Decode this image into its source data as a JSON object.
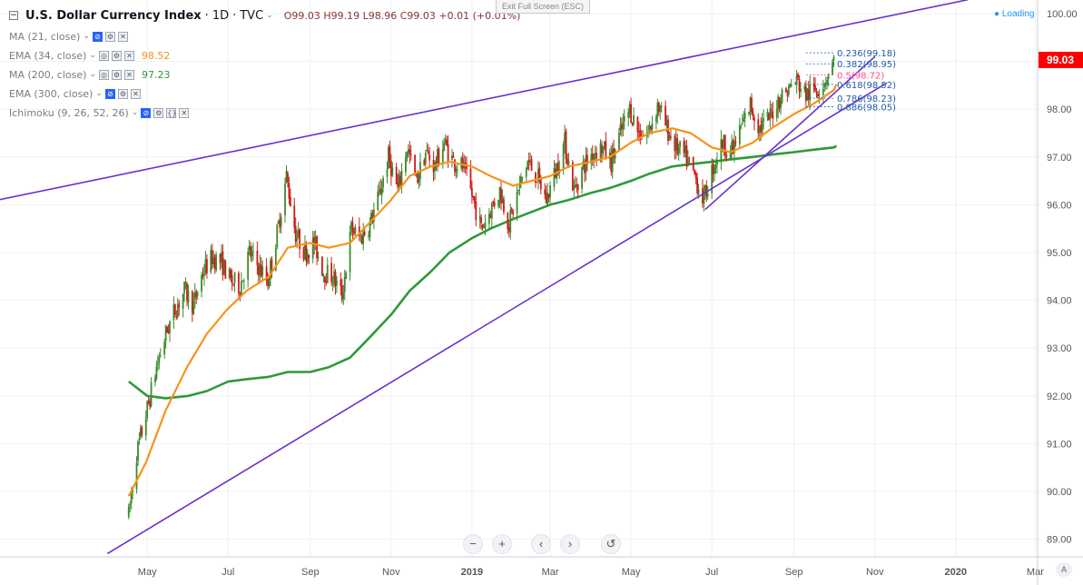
{
  "header": {
    "collapse_icon": "minus-box-icon",
    "symbol": "U.S. Dollar Currency Index",
    "interval": "1D",
    "source": "TVC",
    "open": "O99.03",
    "high": "H99.19",
    "low": "L98.96",
    "close": "C99.03",
    "change": "+0.01 (+0.01%)"
  },
  "indicators": [
    {
      "label": "MA (21, close)",
      "value": ""
    },
    {
      "label": "EMA (34, close)",
      "value": "98.52",
      "color": "#f7931a"
    },
    {
      "label": "MA (200, close)",
      "value": "97.23",
      "color": "#2e9a3a"
    },
    {
      "label": "EMA (300, close)",
      "value": ""
    },
    {
      "label": "Ichimoku (9, 26, 52, 26)",
      "value": ""
    }
  ],
  "exit_fullscreen": "Exit Full Screen (ESC)",
  "loading": "Loading",
  "navigation": {
    "zoom_out": "−",
    "zoom_in": "+",
    "scroll_left": "‹",
    "scroll_right": "›",
    "reset": "↺",
    "auto": "A"
  },
  "chart_data": {
    "type": "candlestick",
    "x_ticks": [
      "May",
      "Jul",
      "Sep",
      "Nov",
      "2019",
      "Mar",
      "May",
      "Jul",
      "Sep",
      "Nov",
      "2020",
      "Mar"
    ],
    "y_ticks": [
      "100.00",
      "99.00",
      "98.00",
      "97.00",
      "96.00",
      "95.00",
      "94.00",
      "93.00",
      "92.00",
      "91.00",
      "90.00",
      "89.00"
    ],
    "ylim": [
      88.8,
      100.2
    ],
    "last_price": "99.03",
    "last_price_color": "#ff0000",
    "up_color": "#3c8a2e",
    "down_color": "#d11b1b",
    "trendline_color": "#6a2fd0",
    "close_path": [
      [
        "2018-04-17",
        89.5
      ],
      [
        "2018-04-23",
        90.8
      ],
      [
        "2018-04-30",
        91.6
      ],
      [
        "2018-05-08",
        92.6
      ],
      [
        "2018-05-15",
        93.3
      ],
      [
        "2018-05-22",
        93.8
      ],
      [
        "2018-05-29",
        94.2
      ],
      [
        "2018-06-05",
        93.9
      ],
      [
        "2018-06-12",
        94.6
      ],
      [
        "2018-06-19",
        94.9
      ],
      [
        "2018-06-26",
        94.8
      ],
      [
        "2018-07-03",
        94.4
      ],
      [
        "2018-07-10",
        94.3
      ],
      [
        "2018-07-17",
        95.0
      ],
      [
        "2018-07-24",
        94.7
      ],
      [
        "2018-07-31",
        94.4
      ],
      [
        "2018-08-07",
        95.4
      ],
      [
        "2018-08-14",
        96.6
      ],
      [
        "2018-08-21",
        95.4
      ],
      [
        "2018-08-28",
        95.0
      ],
      [
        "2018-09-04",
        95.2
      ],
      [
        "2018-09-11",
        94.6
      ],
      [
        "2018-09-18",
        94.5
      ],
      [
        "2018-09-25",
        94.1
      ],
      [
        "2018-10-02",
        95.5
      ],
      [
        "2018-10-09",
        95.3
      ],
      [
        "2018-10-16",
        95.6
      ],
      [
        "2018-10-23",
        96.2
      ],
      [
        "2018-10-30",
        97.0
      ],
      [
        "2018-11-06",
        96.3
      ],
      [
        "2018-11-13",
        97.2
      ],
      [
        "2018-11-20",
        96.5
      ],
      [
        "2018-11-27",
        97.1
      ],
      [
        "2018-12-04",
        96.8
      ],
      [
        "2018-12-11",
        97.3
      ],
      [
        "2018-12-18",
        96.9
      ],
      [
        "2018-12-25",
        96.8
      ],
      [
        "2019-01-01",
        96.2
      ],
      [
        "2019-01-08",
        95.5
      ],
      [
        "2019-01-15",
        95.9
      ],
      [
        "2019-01-22",
        96.3
      ],
      [
        "2019-01-29",
        95.6
      ],
      [
        "2019-02-05",
        96.3
      ],
      [
        "2019-02-12",
        96.9
      ],
      [
        "2019-02-19",
        96.6
      ],
      [
        "2019-02-26",
        96.1
      ],
      [
        "2019-03-05",
        96.7
      ],
      [
        "2019-03-12",
        97.3
      ],
      [
        "2019-03-19",
        96.3
      ],
      [
        "2019-03-26",
        96.8
      ],
      [
        "2019-04-02",
        97.1
      ],
      [
        "2019-04-09",
        97.2
      ],
      [
        "2019-04-16",
        96.9
      ],
      [
        "2019-04-23",
        97.5
      ],
      [
        "2019-04-30",
        98.0
      ],
      [
        "2019-05-07",
        97.5
      ],
      [
        "2019-05-14",
        97.5
      ],
      [
        "2019-05-21",
        98.1
      ],
      [
        "2019-05-28",
        97.6
      ],
      [
        "2019-06-04",
        97.2
      ],
      [
        "2019-06-11",
        97.0
      ],
      [
        "2019-06-18",
        96.6
      ],
      [
        "2019-06-25",
        96.1
      ],
      [
        "2019-07-02",
        96.8
      ],
      [
        "2019-07-09",
        97.3
      ],
      [
        "2019-07-16",
        97.1
      ],
      [
        "2019-07-23",
        97.6
      ],
      [
        "2019-07-30",
        98.1
      ],
      [
        "2019-08-06",
        97.6
      ],
      [
        "2019-08-13",
        97.8
      ],
      [
        "2019-08-20",
        98.2
      ],
      [
        "2019-08-27",
        98.4
      ],
      [
        "2019-09-03",
        98.6
      ],
      [
        "2019-09-10",
        98.3
      ],
      [
        "2019-09-17",
        98.4
      ],
      [
        "2019-09-24",
        98.6
      ],
      [
        "2019-10-01",
        99.0
      ]
    ],
    "series": [
      {
        "name": "EMA (34, close)",
        "color": "#f7931a",
        "points": [
          [
            "2018-04-17",
            89.9
          ],
          [
            "2018-04-30",
            90.6
          ],
          [
            "2018-05-15",
            91.7
          ],
          [
            "2018-05-31",
            92.6
          ],
          [
            "2018-06-15",
            93.3
          ],
          [
            "2018-06-30",
            93.8
          ],
          [
            "2018-07-15",
            94.2
          ],
          [
            "2018-08-01",
            94.5
          ],
          [
            "2018-08-15",
            95.1
          ],
          [
            "2018-09-01",
            95.2
          ],
          [
            "2018-09-15",
            95.1
          ],
          [
            "2018-10-01",
            95.2
          ],
          [
            "2018-10-15",
            95.6
          ],
          [
            "2018-11-01",
            96.1
          ],
          [
            "2018-11-15",
            96.6
          ],
          [
            "2018-12-01",
            96.8
          ],
          [
            "2018-12-15",
            96.9
          ],
          [
            "2019-01-01",
            96.8
          ],
          [
            "2019-01-15",
            96.6
          ],
          [
            "2019-02-01",
            96.4
          ],
          [
            "2019-02-15",
            96.5
          ],
          [
            "2019-03-01",
            96.6
          ],
          [
            "2019-03-15",
            96.8
          ],
          [
            "2019-04-01",
            96.9
          ],
          [
            "2019-04-15",
            97.0
          ],
          [
            "2019-05-01",
            97.3
          ],
          [
            "2019-05-15",
            97.5
          ],
          [
            "2019-06-01",
            97.6
          ],
          [
            "2019-06-15",
            97.5
          ],
          [
            "2019-07-01",
            97.2
          ],
          [
            "2019-07-15",
            97.1
          ],
          [
            "2019-08-01",
            97.3
          ],
          [
            "2019-08-15",
            97.6
          ],
          [
            "2019-09-01",
            97.9
          ],
          [
            "2019-09-15",
            98.1
          ],
          [
            "2019-10-01",
            98.4
          ],
          [
            "2019-10-03",
            98.52
          ]
        ]
      },
      {
        "name": "MA (200, close)",
        "color": "#2e9a3a",
        "points": [
          [
            "2018-04-17",
            92.3
          ],
          [
            "2018-05-01",
            92.0
          ],
          [
            "2018-05-15",
            91.95
          ],
          [
            "2018-06-01",
            92.0
          ],
          [
            "2018-06-15",
            92.1
          ],
          [
            "2018-07-01",
            92.3
          ],
          [
            "2018-07-15",
            92.35
          ],
          [
            "2018-08-01",
            92.4
          ],
          [
            "2018-08-15",
            92.5
          ],
          [
            "2018-09-01",
            92.5
          ],
          [
            "2018-09-15",
            92.6
          ],
          [
            "2018-10-01",
            92.8
          ],
          [
            "2018-10-15",
            93.2
          ],
          [
            "2018-11-01",
            93.7
          ],
          [
            "2018-11-15",
            94.2
          ],
          [
            "2018-12-01",
            94.6
          ],
          [
            "2018-12-15",
            95.0
          ],
          [
            "2019-01-01",
            95.3
          ],
          [
            "2019-01-15",
            95.5
          ],
          [
            "2019-02-01",
            95.7
          ],
          [
            "2019-02-15",
            95.85
          ],
          [
            "2019-03-01",
            96.0
          ],
          [
            "2019-03-15",
            96.1
          ],
          [
            "2019-04-01",
            96.25
          ],
          [
            "2019-04-15",
            96.35
          ],
          [
            "2019-05-01",
            96.5
          ],
          [
            "2019-05-15",
            96.65
          ],
          [
            "2019-06-01",
            96.8
          ],
          [
            "2019-06-15",
            96.85
          ],
          [
            "2019-07-01",
            96.9
          ],
          [
            "2019-07-15",
            96.95
          ],
          [
            "2019-08-01",
            97.0
          ],
          [
            "2019-08-15",
            97.05
          ],
          [
            "2019-09-01",
            97.1
          ],
          [
            "2019-09-15",
            97.15
          ],
          [
            "2019-10-01",
            97.2
          ],
          [
            "2019-10-03",
            97.23
          ]
        ]
      }
    ],
    "trendlines": [
      {
        "from": [
          "2017-12-01",
          95.88
        ],
        "to": [
          "2020-01-10",
          100.29
        ]
      },
      {
        "from": [
          "2018-04-01",
          88.7
        ],
        "to": [
          "2019-11-10",
          98.55
        ]
      },
      {
        "from": [
          "2019-06-26",
          95.9
        ],
        "to": [
          "2019-11-01",
          99.1
        ]
      }
    ],
    "fibonacci": [
      {
        "label": "0.236(99.18)",
        "value": 99.18,
        "color": "#1e5aa8"
      },
      {
        "label": "0.382(98.95)",
        "value": 98.95,
        "color": "#1e5aa8"
      },
      {
        "label": "0.5(98.72)",
        "value": 98.72,
        "color": "#ff4d8d"
      },
      {
        "label": "0.618(98.52)",
        "value": 98.52,
        "color": "#1e5aa8"
      },
      {
        "label": "0.786(98.23)",
        "value": 98.23,
        "color": "#1e5aa8"
      },
      {
        "label": "0.886(98.05)",
        "value": 98.05,
        "color": "#1e5aa8"
      }
    ]
  }
}
